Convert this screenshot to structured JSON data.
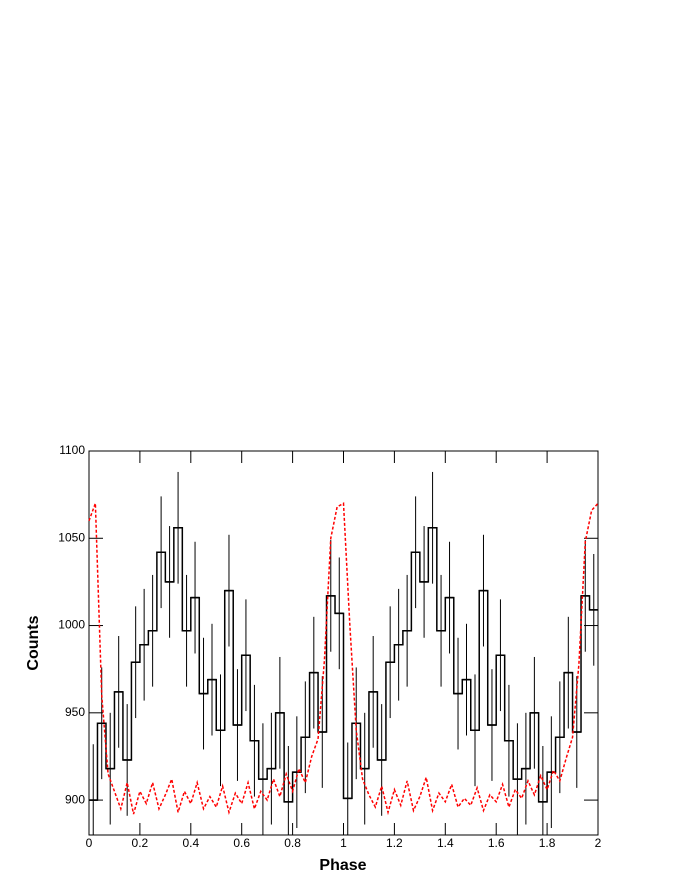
{
  "chart_data": {
    "type": "histogram",
    "xlabel": "Phase",
    "ylabel": "Counts",
    "xlim": [
      0,
      2
    ],
    "ylim": [
      880,
      1100
    ],
    "xticks": [
      0,
      0.2,
      0.4,
      0.6,
      0.8,
      1,
      1.2,
      1.4,
      1.6,
      1.8,
      2
    ],
    "yticks": [
      900,
      950,
      1000,
      1050,
      1100
    ],
    "series": [
      {
        "type": "histogram",
        "color": "#000000",
        "bins": [
          0,
          0.0333,
          0.0667,
          0.1,
          0.1333,
          0.1667,
          0.2,
          0.2333,
          0.2667,
          0.3,
          0.3333,
          0.3667,
          0.4,
          0.4333,
          0.4667,
          0.5,
          0.5333,
          0.5667,
          0.6,
          0.6333,
          0.6667,
          0.7,
          0.7333,
          0.7667,
          0.8,
          0.8333,
          0.8667,
          0.9,
          0.9333,
          0.9667,
          1,
          1.0333,
          1.0667,
          1.1,
          1.1333,
          1.1667,
          1.2,
          1.2333,
          1.2667,
          1.3,
          1.3333,
          1.3667,
          1.4,
          1.4333,
          1.4667,
          1.5,
          1.5333,
          1.5667,
          1.6,
          1.6333,
          1.6667,
          1.7,
          1.7333,
          1.7667,
          1.8,
          1.8333,
          1.8667,
          1.9,
          1.9333,
          1.9667,
          2
        ],
        "values": [
          900,
          944,
          918,
          962,
          923,
          979,
          989,
          997,
          1042,
          1025,
          1056,
          997,
          1016,
          961,
          969,
          940,
          1020,
          943,
          983,
          934,
          912,
          918,
          950,
          899,
          916,
          936,
          973,
          939,
          1017,
          1007,
          901,
          944,
          918,
          962,
          923,
          979,
          989,
          997,
          1042,
          1025,
          1056,
          997,
          1016,
          961,
          969,
          940,
          1020,
          943,
          983,
          934,
          912,
          918,
          950,
          899,
          916,
          936,
          973,
          939,
          1017,
          1009
        ],
        "errors": [
          32,
          32,
          32,
          32,
          32,
          32,
          32,
          32,
          32,
          32,
          32,
          32,
          32,
          32,
          32,
          32,
          32,
          32,
          32,
          32,
          32,
          32,
          32,
          32,
          32,
          32,
          32,
          32,
          32,
          32,
          32,
          32,
          32,
          32,
          32,
          32,
          32,
          32,
          32,
          32,
          32,
          32,
          32,
          32,
          32,
          32,
          32,
          32,
          32,
          32,
          32,
          32,
          32,
          32,
          32,
          32,
          32,
          32,
          32,
          32
        ]
      },
      {
        "type": "line",
        "color": "#ff0000",
        "dashed": true,
        "x": [
          0,
          0.025,
          0.05,
          0.075,
          0.1,
          0.125,
          0.15,
          0.175,
          0.2,
          0.225,
          0.25,
          0.275,
          0.3,
          0.325,
          0.35,
          0.375,
          0.4,
          0.425,
          0.45,
          0.475,
          0.5,
          0.525,
          0.55,
          0.575,
          0.6,
          0.625,
          0.65,
          0.675,
          0.7,
          0.725,
          0.75,
          0.775,
          0.8,
          0.825,
          0.85,
          0.875,
          0.9,
          0.925,
          0.95,
          0.975,
          1,
          1.025,
          1.05,
          1.075,
          1.1,
          1.125,
          1.15,
          1.175,
          1.2,
          1.225,
          1.25,
          1.275,
          1.3,
          1.325,
          1.35,
          1.375,
          1.4,
          1.425,
          1.45,
          1.475,
          1.5,
          1.525,
          1.55,
          1.575,
          1.6,
          1.625,
          1.65,
          1.675,
          1.7,
          1.725,
          1.75,
          1.775,
          1.8,
          1.825,
          1.85,
          1.875,
          1.9,
          1.925,
          1.95,
          1.975,
          2
        ],
        "values": [
          1060,
          1070,
          960,
          915,
          905,
          895,
          910,
          892,
          905,
          898,
          910,
          895,
          903,
          912,
          893,
          905,
          898,
          910,
          895,
          902,
          896,
          908,
          893,
          904,
          898,
          910,
          895,
          905,
          900,
          912,
          902,
          915,
          905,
          918,
          910,
          925,
          935,
          980,
          1050,
          1068,
          1070,
          1000,
          940,
          912,
          903,
          896,
          908,
          893,
          906,
          897,
          911,
          894,
          902,
          913,
          894,
          904,
          899,
          909,
          896,
          901,
          897,
          907,
          894,
          903,
          899,
          909,
          896,
          906,
          901,
          911,
          903,
          914,
          906,
          917,
          911,
          924,
          936,
          978,
          1048,
          1066,
          1070
        ]
      }
    ]
  }
}
